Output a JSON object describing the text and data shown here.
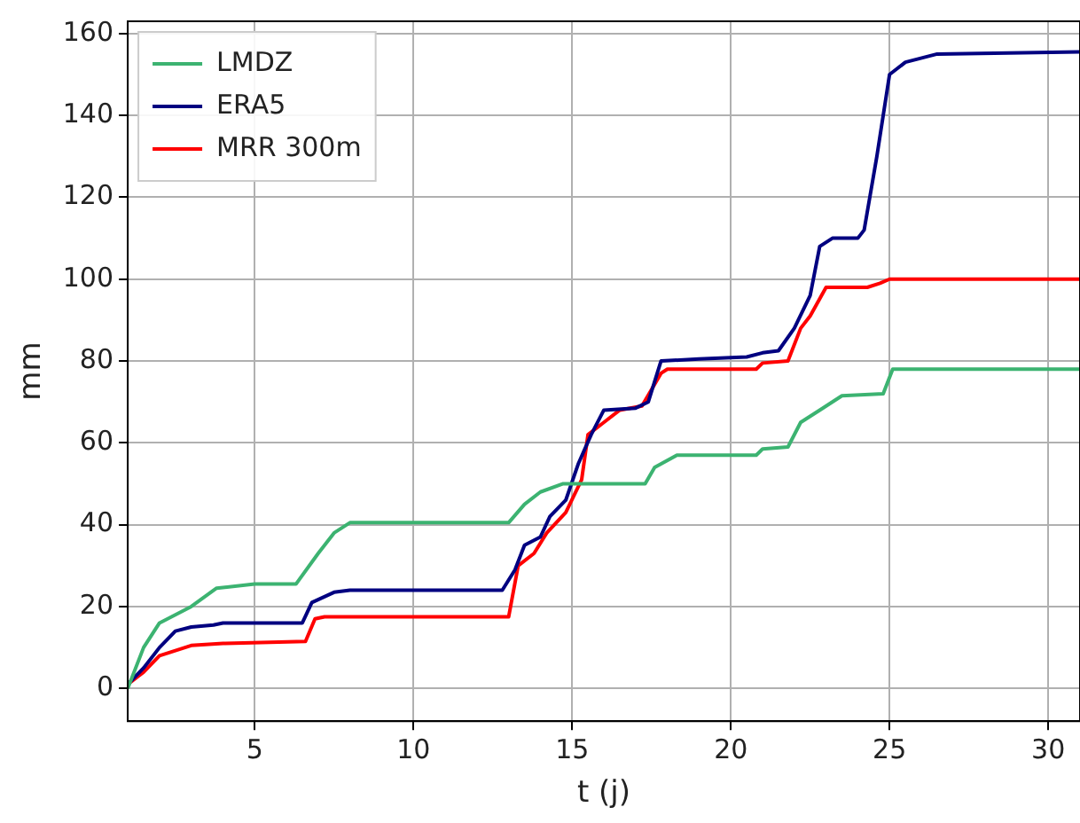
{
  "chart_data": {
    "type": "line",
    "xlabel": "t (j)",
    "ylabel": "mm",
    "xlim": [
      1,
      31
    ],
    "xticks": [
      5,
      10,
      15,
      20,
      25,
      30
    ],
    "ylim": [
      -8,
      163
    ],
    "yticks": [
      0,
      20,
      40,
      60,
      80,
      100,
      120,
      140,
      160
    ],
    "grid": true,
    "legend": "top left",
    "marker": "none",
    "line_style": "solid",
    "series": [
      {
        "name": "LMDZ",
        "color": "#3cb371",
        "x": [
          1,
          1.5,
          2,
          3,
          3.8,
          5,
          6.3,
          7,
          7.5,
          8,
          13,
          13.5,
          14,
          14.7,
          17.3,
          17.6,
          18.3,
          20.8,
          21,
          21.8,
          22.2,
          22.8,
          23.5,
          24.8,
          25.1,
          26,
          31
        ],
        "values": [
          0,
          10,
          16,
          20,
          24.5,
          25.5,
          25.5,
          33,
          38,
          40.5,
          40.5,
          45,
          48,
          50,
          50,
          54,
          57,
          57,
          58.5,
          59,
          65,
          68,
          71.5,
          72,
          78,
          78,
          78
        ]
      },
      {
        "name": "ERA5",
        "color": "#000080",
        "x": [
          1,
          1.5,
          2,
          2.5,
          3,
          3.7,
          4,
          6.5,
          6.8,
          7.5,
          8,
          12.8,
          13.2,
          13.5,
          14,
          14.3,
          14.8,
          15.2,
          15.6,
          16,
          17,
          17.4,
          17.8,
          19,
          20.5,
          21,
          21.5,
          22,
          22.5,
          22.8,
          23.2,
          24,
          24.2,
          24.6,
          25,
          25.5,
          26.5,
          31
        ],
        "values": [
          1,
          5,
          10,
          14,
          15,
          15.5,
          16,
          16,
          21,
          23.5,
          24,
          24,
          29,
          35,
          37,
          42,
          46,
          55,
          62,
          68,
          68.5,
          70,
          80,
          80.5,
          81,
          82,
          82.5,
          88,
          96,
          108,
          110,
          110,
          112,
          130,
          150,
          153,
          155,
          155.5
        ]
      },
      {
        "name": "MRR 300m",
        "color": "#ff0000",
        "x": [
          1,
          1.5,
          2,
          3,
          4,
          6.6,
          6.9,
          7.2,
          13,
          13.3,
          13.8,
          14.2,
          14.8,
          15.3,
          15.5,
          16,
          16.5,
          17.2,
          17.8,
          18,
          20.8,
          21,
          21.8,
          22.2,
          22.5,
          23,
          24.3,
          24.7,
          25,
          31
        ],
        "values": [
          1,
          4,
          8,
          10.5,
          11,
          11.5,
          17,
          17.5,
          17.5,
          30,
          33,
          38,
          43,
          51,
          62,
          65,
          68,
          69,
          77,
          78,
          78,
          79.5,
          80,
          88,
          91,
          98,
          98,
          99,
          100,
          100
        ]
      }
    ]
  }
}
